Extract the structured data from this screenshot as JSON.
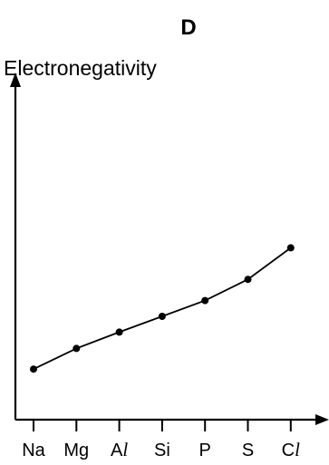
{
  "chart_data": {
    "type": "line",
    "title": "D",
    "ylabel": "Electronegativity",
    "xlabel": "",
    "categories": [
      "Na",
      "Mg",
      "Al",
      "Si",
      "P",
      "S",
      "Cl"
    ],
    "series": [
      {
        "values": [
          0.93,
          1.31,
          1.61,
          1.9,
          2.19,
          2.58,
          3.16
        ]
      }
    ],
    "ylim": [
      0,
      4.2
    ],
    "grid": false,
    "legend": "none"
  }
}
